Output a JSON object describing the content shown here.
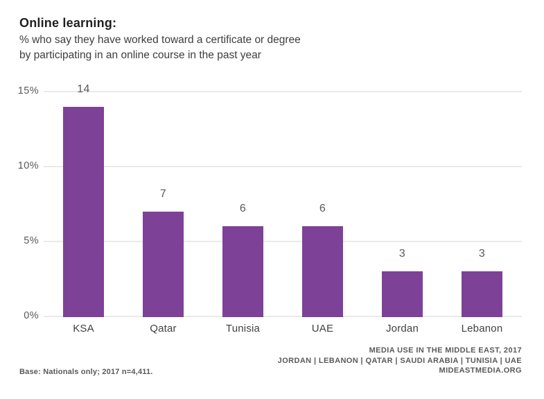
{
  "header": {
    "title": "Online learning:",
    "subtitle_line1": "% who say they have worked toward a certificate or degree",
    "subtitle_line2": "by participating in an online course in the past year"
  },
  "chart_data": {
    "type": "bar",
    "categories": [
      "KSA",
      "Qatar",
      "Tunisia",
      "UAE",
      "Jordan",
      "Lebanon"
    ],
    "values": [
      14,
      7,
      6,
      6,
      3,
      3
    ],
    "title": "Online learning:",
    "xlabel": "",
    "ylabel": "",
    "ylim": [
      0,
      15
    ],
    "ytick_values": [
      0,
      5,
      10,
      15
    ],
    "ytick_labels": [
      "0%",
      "5%",
      "10%",
      "15%"
    ],
    "grid": true,
    "legend": "none",
    "bar_color": "#7d4198",
    "gridline_color": "#e9e9e9",
    "tick_label_color": "#58595b",
    "value_label_color": "#58595b",
    "category_label_color": "#414042"
  },
  "footer": {
    "base_note": "Base: Nationals only; 2017 n=4,411.",
    "source_line1": "MEDIA USE IN THE MIDDLE EAST, 2017",
    "source_line2": "JORDAN | LEBANON | QATAR | SAUDI ARABIA | TUNISIA | UAE",
    "source_line3": "MIDEASTMEDIA.ORG"
  }
}
